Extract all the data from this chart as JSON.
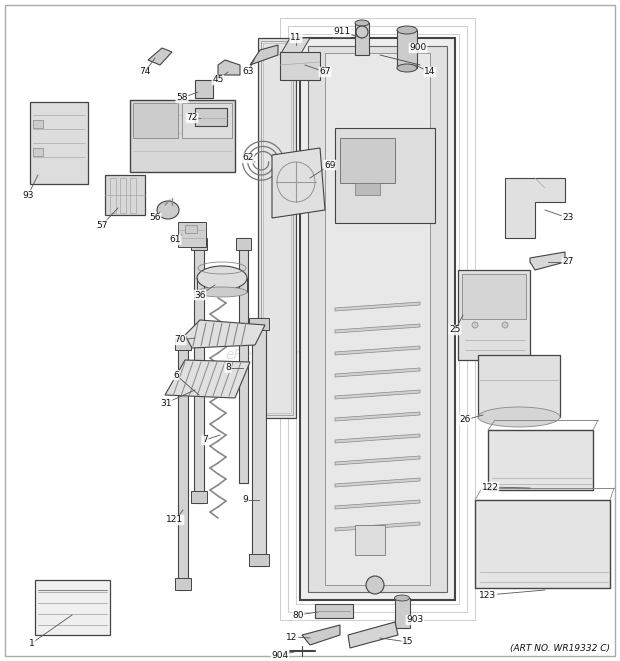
{
  "background_color": "#ffffff",
  "watermark": "eReplacementParts.com",
  "art_no": "(ART NO. WR19332 C)",
  "fig_width": 6.2,
  "fig_height": 6.61,
  "dpi": 100,
  "line_color": "#444444",
  "text_color": "#111111",
  "gray_fill": "#e8e8e8",
  "light_fill": "#f5f5f5",
  "mid_fill": "#d0d0d0"
}
